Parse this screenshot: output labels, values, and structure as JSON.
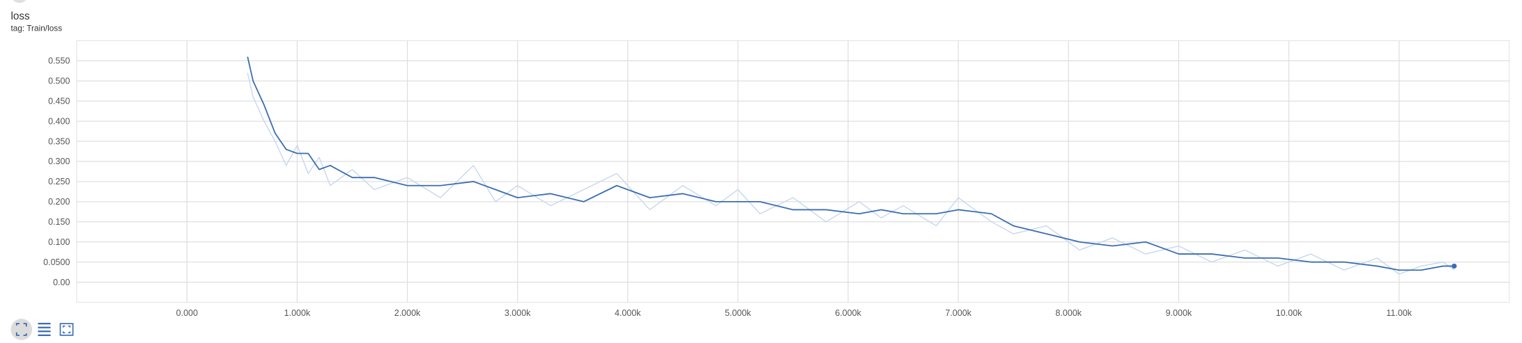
{
  "chart_data": {
    "type": "line",
    "title": "loss",
    "subtitle": "tag: Train/loss",
    "x": [
      550,
      600,
      700,
      800,
      900,
      1000,
      1100,
      1200,
      1300,
      1500,
      1700,
      2000,
      2300,
      2600,
      2800,
      3000,
      3300,
      3600,
      3900,
      4200,
      4500,
      4800,
      5000,
      5200,
      5500,
      5800,
      6100,
      6300,
      6500,
      6800,
      7000,
      7300,
      7500,
      7800,
      8100,
      8400,
      8700,
      9000,
      9300,
      9600,
      9900,
      10200,
      10500,
      10800,
      11000,
      11200,
      11400,
      11500
    ],
    "series": [
      {
        "color": "#c6d7ee",
        "values": [
          0.52,
          0.46,
          0.4,
          0.35,
          0.29,
          0.34,
          0.27,
          0.31,
          0.24,
          0.28,
          0.23,
          0.26,
          0.21,
          0.29,
          0.2,
          0.24,
          0.19,
          0.23,
          0.27,
          0.18,
          0.24,
          0.19,
          0.23,
          0.17,
          0.21,
          0.15,
          0.2,
          0.16,
          0.19,
          0.14,
          0.21,
          0.15,
          0.12,
          0.14,
          0.08,
          0.11,
          0.07,
          0.09,
          0.05,
          0.08,
          0.04,
          0.07,
          0.03,
          0.06,
          0.02,
          0.04,
          0.05,
          0.03
        ]
      },
      {
        "color": "#3b6db3",
        "values": [
          0.56,
          0.5,
          0.44,
          0.37,
          0.33,
          0.32,
          0.32,
          0.28,
          0.29,
          0.26,
          0.26,
          0.24,
          0.24,
          0.25,
          0.23,
          0.21,
          0.22,
          0.2,
          0.24,
          0.21,
          0.22,
          0.2,
          0.2,
          0.2,
          0.18,
          0.18,
          0.17,
          0.18,
          0.17,
          0.17,
          0.18,
          0.17,
          0.14,
          0.12,
          0.1,
          0.09,
          0.1,
          0.07,
          0.07,
          0.06,
          0.06,
          0.05,
          0.05,
          0.04,
          0.03,
          0.03,
          0.04,
          0.04
        ]
      }
    ],
    "xlim": [
      -1000,
      12000
    ],
    "ylim": [
      -0.05,
      0.6
    ],
    "xticks": [
      {
        "value": 0,
        "label": "0.000"
      },
      {
        "value": 1000,
        "label": "1.000k"
      },
      {
        "value": 2000,
        "label": "2.000k"
      },
      {
        "value": 3000,
        "label": "3.000k"
      },
      {
        "value": 4000,
        "label": "4.000k"
      },
      {
        "value": 5000,
        "label": "5.000k"
      },
      {
        "value": 6000,
        "label": "6.000k"
      },
      {
        "value": 7000,
        "label": "7.000k"
      },
      {
        "value": 8000,
        "label": "8.000k"
      },
      {
        "value": 9000,
        "label": "9.000k"
      },
      {
        "value": 10000,
        "label": "10.00k"
      },
      {
        "value": 11000,
        "label": "11.00k"
      }
    ],
    "yticks": [
      {
        "value": 0,
        "label": "0.00"
      },
      {
        "value": 0.05,
        "label": "0.0500"
      },
      {
        "value": 0.1,
        "label": "0.100"
      },
      {
        "value": 0.15,
        "label": "0.150"
      },
      {
        "value": 0.2,
        "label": "0.200"
      },
      {
        "value": 0.25,
        "label": "0.250"
      },
      {
        "value": 0.3,
        "label": "0.300"
      },
      {
        "value": 0.35,
        "label": "0.350"
      },
      {
        "value": 0.4,
        "label": "0.400"
      },
      {
        "value": 0.45,
        "label": "0.450"
      },
      {
        "value": 0.5,
        "label": "0.500"
      },
      {
        "value": 0.55,
        "label": "0.550"
      }
    ],
    "grid": true
  }
}
